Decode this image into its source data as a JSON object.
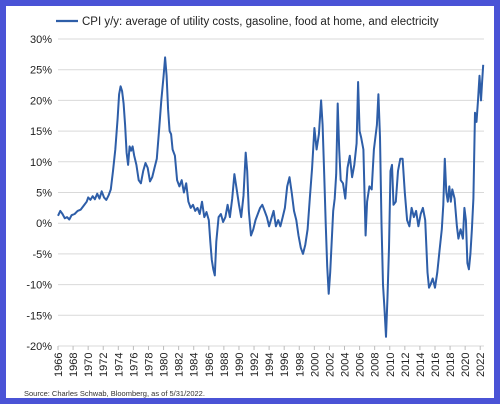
{
  "chart_data": {
    "type": "line",
    "legend": "CPI y/y: average of utility costs, gasoline, food at home, and electricity",
    "legend_position": "top-left",
    "source": "Source: Charles Schwab, Bloomberg, as of 5/31/2022.",
    "ylim": [
      -20,
      30
    ],
    "yticks": [
      30,
      25,
      20,
      15,
      10,
      5,
      0,
      -5,
      -10,
      -15,
      -20
    ],
    "ytick_labels": [
      "30%",
      "25%",
      "20%",
      "15%",
      "10%",
      "5%",
      "0%",
      "-5%",
      "-10%",
      "-15%",
      "-20%"
    ],
    "xlim": [
      1966,
      2022.5
    ],
    "xticks": [
      1966,
      1968,
      1970,
      1972,
      1974,
      1976,
      1978,
      1980,
      1982,
      1984,
      1986,
      1988,
      1990,
      1992,
      1994,
      1996,
      1998,
      2000,
      2002,
      2004,
      2006,
      2008,
      2010,
      2012,
      2014,
      2016,
      2018,
      2020,
      2022
    ],
    "grid": "horizontal",
    "line_color": "#2e5ea8",
    "series": [
      {
        "name": "CPI y/y: average of utility costs, gasoline, food at home, and electricity",
        "points": [
          [
            1966.0,
            1.2
          ],
          [
            1966.3,
            2.0
          ],
          [
            1966.6,
            1.5
          ],
          [
            1966.9,
            0.8
          ],
          [
            1967.2,
            1.0
          ],
          [
            1967.5,
            0.6
          ],
          [
            1967.8,
            1.3
          ],
          [
            1968.2,
            1.5
          ],
          [
            1968.6,
            2.0
          ],
          [
            1969.0,
            2.2
          ],
          [
            1969.5,
            3.0
          ],
          [
            1969.8,
            3.5
          ],
          [
            1970.0,
            4.2
          ],
          [
            1970.3,
            3.8
          ],
          [
            1970.6,
            4.4
          ],
          [
            1970.9,
            3.9
          ],
          [
            1971.2,
            4.8
          ],
          [
            1971.5,
            4.0
          ],
          [
            1971.8,
            5.2
          ],
          [
            1972.1,
            4.2
          ],
          [
            1972.4,
            3.8
          ],
          [
            1972.7,
            4.5
          ],
          [
            1973.0,
            5.5
          ],
          [
            1973.3,
            8.5
          ],
          [
            1973.6,
            12.0
          ],
          [
            1973.9,
            17.0
          ],
          [
            1974.1,
            21.0
          ],
          [
            1974.3,
            22.3
          ],
          [
            1974.5,
            21.5
          ],
          [
            1974.7,
            19.5
          ],
          [
            1974.9,
            16.0
          ],
          [
            1975.1,
            11.5
          ],
          [
            1975.3,
            9.5
          ],
          [
            1975.5,
            12.5
          ],
          [
            1975.7,
            11.8
          ],
          [
            1975.9,
            12.5
          ],
          [
            1976.1,
            11.0
          ],
          [
            1976.4,
            9.5
          ],
          [
            1976.7,
            7.0
          ],
          [
            1977.0,
            6.5
          ],
          [
            1977.3,
            8.5
          ],
          [
            1977.6,
            9.8
          ],
          [
            1977.9,
            9.0
          ],
          [
            1978.2,
            6.8
          ],
          [
            1978.5,
            7.5
          ],
          [
            1978.8,
            9.0
          ],
          [
            1979.1,
            10.5
          ],
          [
            1979.4,
            15.0
          ],
          [
            1979.7,
            20.0
          ],
          [
            1980.0,
            24.0
          ],
          [
            1980.2,
            27.0
          ],
          [
            1980.4,
            24.0
          ],
          [
            1980.6,
            18.5
          ],
          [
            1980.8,
            15.0
          ],
          [
            1981.0,
            14.5
          ],
          [
            1981.2,
            12.0
          ],
          [
            1981.5,
            11.0
          ],
          [
            1981.8,
            7.0
          ],
          [
            1982.1,
            6.0
          ],
          [
            1982.4,
            7.0
          ],
          [
            1982.7,
            5.0
          ],
          [
            1983.0,
            6.5
          ],
          [
            1983.3,
            3.5
          ],
          [
            1983.6,
            2.5
          ],
          [
            1983.9,
            3.0
          ],
          [
            1984.2,
            2.0
          ],
          [
            1984.5,
            2.5
          ],
          [
            1984.8,
            1.5
          ],
          [
            1985.1,
            3.5
          ],
          [
            1985.4,
            1.0
          ],
          [
            1985.7,
            1.8
          ],
          [
            1986.0,
            0.5
          ],
          [
            1986.2,
            -3.0
          ],
          [
            1986.4,
            -6.0
          ],
          [
            1986.6,
            -7.5
          ],
          [
            1986.8,
            -8.5
          ],
          [
            1987.0,
            -3.0
          ],
          [
            1987.3,
            1.0
          ],
          [
            1987.6,
            1.5
          ],
          [
            1987.9,
            0.2
          ],
          [
            1988.2,
            1.0
          ],
          [
            1988.5,
            3.0
          ],
          [
            1988.8,
            1.0
          ],
          [
            1989.1,
            4.0
          ],
          [
            1989.4,
            8.0
          ],
          [
            1989.7,
            5.5
          ],
          [
            1990.0,
            3.0
          ],
          [
            1990.3,
            1.0
          ],
          [
            1990.6,
            4.5
          ],
          [
            1990.9,
            11.5
          ],
          [
            1991.1,
            8.5
          ],
          [
            1991.3,
            2.0
          ],
          [
            1991.6,
            -2.0
          ],
          [
            1991.9,
            -1.0
          ],
          [
            1992.2,
            0.5
          ],
          [
            1992.5,
            1.5
          ],
          [
            1992.8,
            2.5
          ],
          [
            1993.1,
            3.0
          ],
          [
            1993.4,
            2.0
          ],
          [
            1993.7,
            1.0
          ],
          [
            1994.0,
            -0.5
          ],
          [
            1994.3,
            0.8
          ],
          [
            1994.6,
            2.0
          ],
          [
            1994.9,
            -0.5
          ],
          [
            1995.2,
            0.5
          ],
          [
            1995.5,
            -0.5
          ],
          [
            1995.8,
            1.0
          ],
          [
            1996.1,
            2.5
          ],
          [
            1996.4,
            6.0
          ],
          [
            1996.7,
            7.5
          ],
          [
            1997.0,
            5.0
          ],
          [
            1997.3,
            2.0
          ],
          [
            1997.6,
            0.5
          ],
          [
            1997.9,
            -2.0
          ],
          [
            1998.2,
            -4.0
          ],
          [
            1998.5,
            -5.0
          ],
          [
            1998.8,
            -3.5
          ],
          [
            1999.1,
            -1.0
          ],
          [
            1999.4,
            4.0
          ],
          [
            1999.7,
            9.0
          ],
          [
            2000.0,
            15.5
          ],
          [
            2000.3,
            12.0
          ],
          [
            2000.6,
            14.5
          ],
          [
            2000.9,
            20.0
          ],
          [
            2001.1,
            16.0
          ],
          [
            2001.3,
            8.0
          ],
          [
            2001.5,
            0.0
          ],
          [
            2001.7,
            -7.0
          ],
          [
            2001.9,
            -11.5
          ],
          [
            2002.1,
            -8.0
          ],
          [
            2002.3,
            -3.0
          ],
          [
            2002.5,
            2.0
          ],
          [
            2002.7,
            4.0
          ],
          [
            2002.9,
            8.0
          ],
          [
            2003.1,
            19.5
          ],
          [
            2003.3,
            12.0
          ],
          [
            2003.5,
            7.0
          ],
          [
            2003.8,
            6.5
          ],
          [
            2004.1,
            4.0
          ],
          [
            2004.4,
            9.0
          ],
          [
            2004.7,
            11.0
          ],
          [
            2005.0,
            7.5
          ],
          [
            2005.3,
            9.5
          ],
          [
            2005.6,
            13.0
          ],
          [
            2005.8,
            23.0
          ],
          [
            2006.0,
            15.0
          ],
          [
            2006.2,
            14.0
          ],
          [
            2006.5,
            12.0
          ],
          [
            2006.8,
            -2.0
          ],
          [
            2007.0,
            3.5
          ],
          [
            2007.3,
            6.0
          ],
          [
            2007.6,
            5.5
          ],
          [
            2007.9,
            12.0
          ],
          [
            2008.1,
            14.0
          ],
          [
            2008.3,
            16.0
          ],
          [
            2008.5,
            21.0
          ],
          [
            2008.7,
            14.0
          ],
          [
            2008.9,
            0.0
          ],
          [
            2009.1,
            -10.0
          ],
          [
            2009.3,
            -14.0
          ],
          [
            2009.5,
            -18.5
          ],
          [
            2009.7,
            -12.0
          ],
          [
            2009.9,
            -4.0
          ],
          [
            2010.1,
            8.5
          ],
          [
            2010.3,
            9.5
          ],
          [
            2010.5,
            3.0
          ],
          [
            2010.8,
            3.5
          ],
          [
            2011.1,
            8.5
          ],
          [
            2011.4,
            10.5
          ],
          [
            2011.7,
            10.5
          ],
          [
            2012.0,
            5.0
          ],
          [
            2012.3,
            0.5
          ],
          [
            2012.6,
            -0.5
          ],
          [
            2012.9,
            2.5
          ],
          [
            2013.2,
            1.0
          ],
          [
            2013.5,
            2.0
          ],
          [
            2013.8,
            -0.5
          ],
          [
            2014.1,
            1.5
          ],
          [
            2014.4,
            2.5
          ],
          [
            2014.7,
            0.5
          ],
          [
            2015.0,
            -8.0
          ],
          [
            2015.2,
            -10.5
          ],
          [
            2015.4,
            -10.0
          ],
          [
            2015.7,
            -9.0
          ],
          [
            2016.0,
            -10.5
          ],
          [
            2016.3,
            -8.0
          ],
          [
            2016.6,
            -4.5
          ],
          [
            2016.9,
            -1.0
          ],
          [
            2017.1,
            3.0
          ],
          [
            2017.3,
            10.5
          ],
          [
            2017.5,
            5.0
          ],
          [
            2017.7,
            3.5
          ],
          [
            2017.9,
            6.0
          ],
          [
            2018.1,
            3.5
          ],
          [
            2018.3,
            5.5
          ],
          [
            2018.6,
            4.0
          ],
          [
            2018.9,
            -0.5
          ],
          [
            2019.1,
            -2.5
          ],
          [
            2019.4,
            -1.0
          ],
          [
            2019.7,
            -2.5
          ],
          [
            2019.9,
            2.5
          ],
          [
            2020.1,
            0.5
          ],
          [
            2020.3,
            -6.5
          ],
          [
            2020.5,
            -7.5
          ],
          [
            2020.7,
            -5.0
          ],
          [
            2020.9,
            -1.0
          ],
          [
            2021.1,
            4.0
          ],
          [
            2021.3,
            18.0
          ],
          [
            2021.5,
            16.5
          ],
          [
            2021.7,
            20.0
          ],
          [
            2021.9,
            24.0
          ],
          [
            2022.1,
            20.0
          ],
          [
            2022.25,
            23.0
          ],
          [
            2022.4,
            25.8
          ]
        ]
      }
    ]
  }
}
